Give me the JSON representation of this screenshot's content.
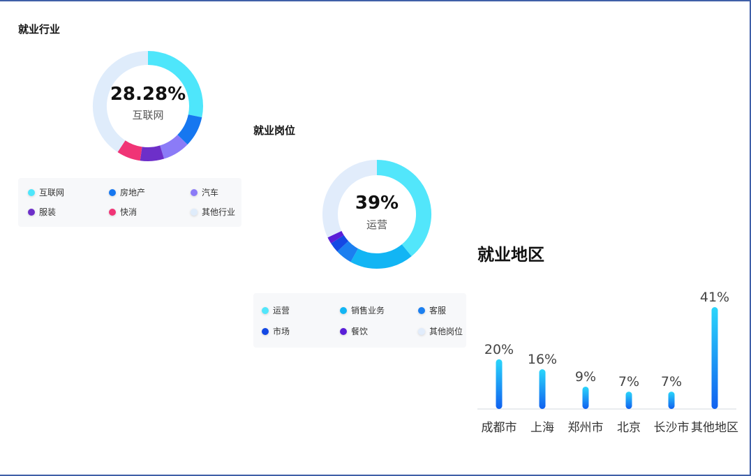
{
  "chart_data": [
    {
      "type": "pie",
      "title": "就业行业",
      "center": {
        "value": "28.28%",
        "label": "互联网"
      },
      "slices": [
        {
          "name": "互联网",
          "value": 28.28,
          "color": "#4ee6fb"
        },
        {
          "name": "房地产",
          "value": 9,
          "color": "#1677f0"
        },
        {
          "name": "汽车",
          "value": 8,
          "color": "#8b7bf7"
        },
        {
          "name": "服装",
          "value": 7,
          "color": "#6d2fc9"
        },
        {
          "name": "快消",
          "value": 7,
          "color": "#f03476"
        },
        {
          "name": "其他行业",
          "value": 40.72,
          "color": "#dfecfb"
        }
      ]
    },
    {
      "type": "pie",
      "title": "就业岗位",
      "center": {
        "value": "39%",
        "label": "运营"
      },
      "slices": [
        {
          "name": "运营",
          "value": 39,
          "color": "#52e6fb"
        },
        {
          "name": "销售业务",
          "value": 19,
          "color": "#12b5f4"
        },
        {
          "name": "客服",
          "value": 5,
          "color": "#1b7ff0"
        },
        {
          "name": "市场",
          "value": 3,
          "color": "#1448e4"
        },
        {
          "name": "餐饮",
          "value": 2,
          "color": "#5a1fd8"
        },
        {
          "name": "其他岗位",
          "value": 32,
          "color": "#e1ecfb"
        }
      ]
    },
    {
      "type": "bar",
      "title": "就业地区",
      "categories": [
        "成都市",
        "上海",
        "郑州市",
        "北京",
        "长沙市",
        "其他地区"
      ],
      "values": [
        20,
        16,
        9,
        7,
        7,
        41
      ],
      "labels": [
        "20%",
        "16%",
        "9%",
        "7%",
        "7%",
        "41%"
      ],
      "ylim": [
        0,
        41
      ],
      "grid": false,
      "colors": {
        "top": "#2ad6fb",
        "bottom": "#1060ef"
      }
    }
  ]
}
